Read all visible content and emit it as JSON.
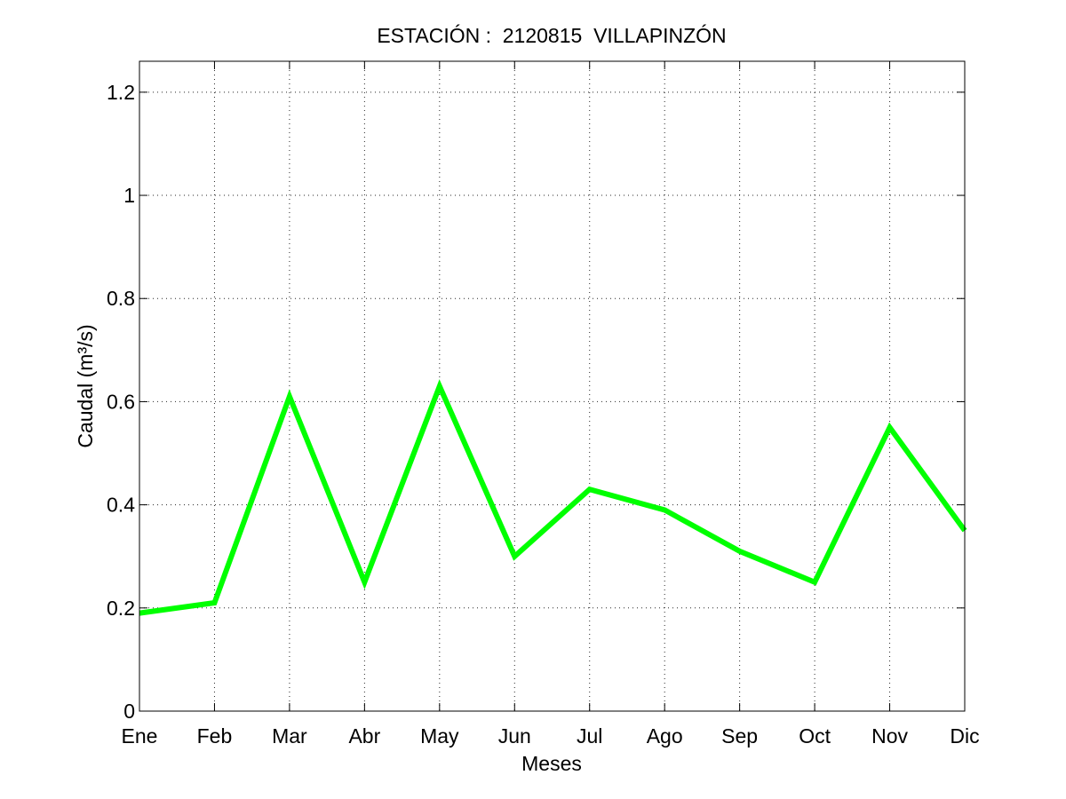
{
  "chart_data": {
    "type": "line",
    "title": "ESTACIÓN :  2120815  VILLAPINZÓN",
    "xlabel": "Meses",
    "ylabel": "Caudal (m³/s)",
    "categories": [
      "Ene",
      "Feb",
      "Mar",
      "Abr",
      "May",
      "Jun",
      "Jul",
      "Ago",
      "Sep",
      "Oct",
      "Nov",
      "Dic"
    ],
    "ylim": [
      0,
      1.26
    ],
    "yticks": [
      "0",
      "0.2",
      "0.4",
      "0.6",
      "0.8",
      "1",
      "1.2"
    ],
    "ytick_values": [
      0,
      0.2,
      0.4,
      0.6,
      0.8,
      1.0,
      1.2
    ],
    "grid": true,
    "series": [
      {
        "values": [
          0.19,
          0.21,
          0.61,
          0.25,
          0.63,
          0.3,
          0.43,
          0.39,
          0.31,
          0.25,
          0.55,
          0.35
        ],
        "color": "#00ff00"
      }
    ]
  }
}
